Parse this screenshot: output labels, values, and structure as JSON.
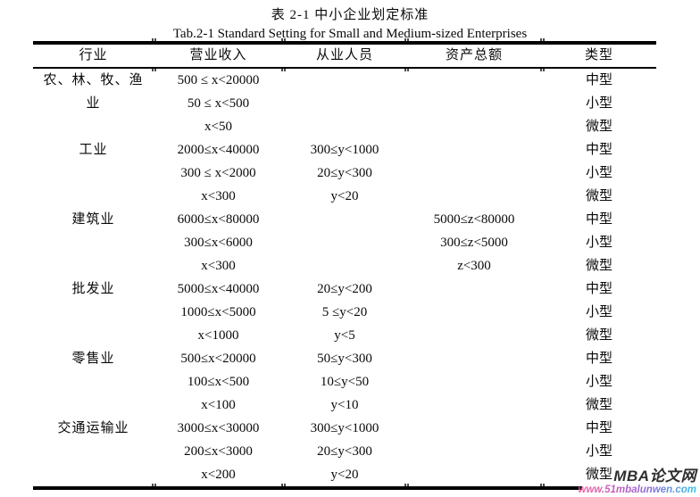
{
  "titles": {
    "cn": "表 2-1 中小企业划定标准",
    "en": "Tab.2-1 Standard Setting for Small and Medium-sized Enterprises"
  },
  "table": {
    "columns": [
      "行业",
      "营业收入",
      "从业人员",
      "资产总额",
      "类型"
    ],
    "groups": [
      {
        "industry": "农、林、牧、渔业",
        "rows": [
          {
            "revenue": "500 ≤ x<20000",
            "employees": "",
            "assets": "",
            "type": "中型"
          },
          {
            "revenue": "50 ≤ x<500",
            "employees": "",
            "assets": "",
            "type": "小型"
          },
          {
            "revenue": "x<50",
            "employees": "",
            "assets": "",
            "type": "微型"
          }
        ]
      },
      {
        "industry": "工业",
        "rows": [
          {
            "revenue": "2000≤x<40000",
            "employees": "300≤y<1000",
            "assets": "",
            "type": "中型"
          },
          {
            "revenue": "300 ≤ x<2000",
            "employees": "20≤y<300",
            "assets": "",
            "type": "小型"
          },
          {
            "revenue": "x<300",
            "employees": "y<20",
            "assets": "",
            "type": "微型"
          }
        ]
      },
      {
        "industry": "建筑业",
        "rows": [
          {
            "revenue": "6000≤x<80000",
            "employees": "",
            "assets": "5000≤z<80000",
            "type": "中型"
          },
          {
            "revenue": "300≤x<6000",
            "employees": "",
            "assets": "300≤z<5000",
            "type": "小型"
          },
          {
            "revenue": "x<300",
            "employees": "",
            "assets": "z<300",
            "type": "微型"
          }
        ]
      },
      {
        "industry": "批发业",
        "rows": [
          {
            "revenue": "5000≤x<40000",
            "employees": "20≤y<200",
            "assets": "",
            "type": "中型"
          },
          {
            "revenue": "1000≤x<5000",
            "employees": "5 ≤y<20",
            "assets": "",
            "type": "小型"
          },
          {
            "revenue": "x<1000",
            "employees": "y<5",
            "assets": "",
            "type": "微型"
          }
        ]
      },
      {
        "industry": "零售业",
        "rows": [
          {
            "revenue": "500≤x<20000",
            "employees": "50≤y<300",
            "assets": "",
            "type": "中型"
          },
          {
            "revenue": "100≤x<500",
            "employees": "10≤y<50",
            "assets": "",
            "type": "小型"
          },
          {
            "revenue": "x<100",
            "employees": "y<10",
            "assets": "",
            "type": "微型"
          }
        ]
      },
      {
        "industry": "交通运输业",
        "rows": [
          {
            "revenue": "3000≤x<30000",
            "employees": "300≤y<1000",
            "assets": "",
            "type": "中型"
          },
          {
            "revenue": "200≤x<3000",
            "employees": "20≤y<300",
            "assets": "",
            "type": "小型"
          },
          {
            "revenue": "x<200",
            "employees": "y<20",
            "assets": "",
            "type": "微型"
          }
        ]
      }
    ]
  },
  "watermark": {
    "brand": "MBA论文网",
    "url": "www.51mbalunwen.com",
    "brand_color": "#2e2e2e",
    "url_gradient": [
      "#f7609f",
      "#8a6bd8",
      "#2fc6e8"
    ]
  }
}
